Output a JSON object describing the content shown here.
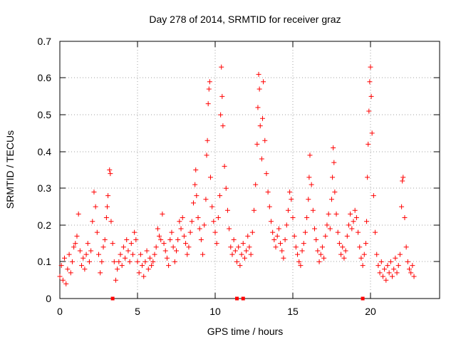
{
  "chart_data": {
    "type": "scatter",
    "title": "Day 278 of 2014, SRMTID for receiver graz",
    "xlabel": "GPS time / hours",
    "ylabel": "SRMTID / TECUs",
    "xlim": [
      0,
      24.5
    ],
    "ylim": [
      0,
      0.7
    ],
    "xticks": [
      "0",
      "5",
      "10",
      "15",
      "20"
    ],
    "yticks": [
      "0",
      "0.1",
      "0.2",
      "0.3",
      "0.4",
      "0.5",
      "0.6",
      "0.7"
    ],
    "grid": true,
    "marker": "+",
    "color": "#ff0000",
    "series": [
      {
        "name": "SRMTID",
        "points": [
          [
            0.0,
            0.06
          ],
          [
            0.1,
            0.09
          ],
          [
            0.2,
            0.05
          ],
          [
            0.3,
            0.11
          ],
          [
            0.4,
            0.04
          ],
          [
            0.5,
            0.08
          ],
          [
            0.6,
            0.12
          ],
          [
            0.7,
            0.07
          ],
          [
            0.8,
            0.1
          ],
          [
            0.9,
            0.14
          ],
          [
            1.0,
            0.15
          ],
          [
            1.1,
            0.17
          ],
          [
            1.2,
            0.23
          ],
          [
            1.3,
            0.13
          ],
          [
            1.4,
            0.09
          ],
          [
            1.5,
            0.11
          ],
          [
            1.6,
            0.08
          ],
          [
            1.7,
            0.12
          ],
          [
            1.8,
            0.15
          ],
          [
            1.9,
            0.1
          ],
          [
            2.0,
            0.13
          ],
          [
            2.1,
            0.21
          ],
          [
            2.2,
            0.29
          ],
          [
            2.3,
            0.25
          ],
          [
            2.4,
            0.18
          ],
          [
            2.5,
            0.12
          ],
          [
            2.6,
            0.07
          ],
          [
            2.7,
            0.1
          ],
          [
            2.8,
            0.14
          ],
          [
            2.9,
            0.16
          ],
          [
            3.0,
            0.22
          ],
          [
            3.05,
            0.25
          ],
          [
            3.1,
            0.28
          ],
          [
            3.2,
            0.35
          ],
          [
            3.25,
            0.34
          ],
          [
            3.3,
            0.21
          ],
          [
            3.4,
            0.15
          ],
          [
            3.5,
            0.1
          ],
          [
            3.6,
            0.05
          ],
          [
            3.7,
            0.08
          ],
          [
            3.8,
            0.1
          ],
          [
            3.9,
            0.12
          ],
          [
            4.0,
            0.09
          ],
          [
            4.1,
            0.14
          ],
          [
            4.2,
            0.11
          ],
          [
            4.3,
            0.16
          ],
          [
            4.4,
            0.13
          ],
          [
            4.5,
            0.1
          ],
          [
            4.6,
            0.15
          ],
          [
            4.7,
            0.12
          ],
          [
            4.8,
            0.18
          ],
          [
            4.9,
            0.16
          ],
          [
            5.0,
            0.1
          ],
          [
            5.1,
            0.07
          ],
          [
            5.2,
            0.12
          ],
          [
            5.3,
            0.09
          ],
          [
            5.4,
            0.06
          ],
          [
            5.5,
            0.1
          ],
          [
            5.6,
            0.13
          ],
          [
            5.7,
            0.08
          ],
          [
            5.8,
            0.11
          ],
          [
            5.9,
            0.09
          ],
          [
            6.0,
            0.1
          ],
          [
            6.1,
            0.12
          ],
          [
            6.2,
            0.14
          ],
          [
            6.3,
            0.19
          ],
          [
            6.4,
            0.17
          ],
          [
            6.5,
            0.16
          ],
          [
            6.6,
            0.23
          ],
          [
            6.7,
            0.15
          ],
          [
            6.8,
            0.13
          ],
          [
            6.9,
            0.11
          ],
          [
            7.0,
            0.09
          ],
          [
            7.1,
            0.16
          ],
          [
            7.2,
            0.18
          ],
          [
            7.3,
            0.14
          ],
          [
            7.4,
            0.1
          ],
          [
            7.5,
            0.13
          ],
          [
            7.6,
            0.16
          ],
          [
            7.7,
            0.21
          ],
          [
            7.8,
            0.19
          ],
          [
            7.9,
            0.22
          ],
          [
            8.0,
            0.17
          ],
          [
            8.1,
            0.15
          ],
          [
            8.2,
            0.12
          ],
          [
            8.3,
            0.14
          ],
          [
            8.4,
            0.18
          ],
          [
            8.5,
            0.21
          ],
          [
            8.6,
            0.26
          ],
          [
            8.7,
            0.31
          ],
          [
            8.75,
            0.35
          ],
          [
            8.8,
            0.28
          ],
          [
            8.9,
            0.22
          ],
          [
            9.0,
            0.19
          ],
          [
            9.1,
            0.16
          ],
          [
            9.2,
            0.12
          ],
          [
            9.3,
            0.2
          ],
          [
            9.4,
            0.27
          ],
          [
            9.45,
            0.39
          ],
          [
            9.5,
            0.43
          ],
          [
            9.55,
            0.53
          ],
          [
            9.6,
            0.57
          ],
          [
            9.65,
            0.59
          ],
          [
            9.7,
            0.33
          ],
          [
            9.8,
            0.25
          ],
          [
            9.9,
            0.21
          ],
          [
            10.0,
            0.18
          ],
          [
            10.1,
            0.15
          ],
          [
            10.2,
            0.22
          ],
          [
            10.3,
            0.28
          ],
          [
            10.35,
            0.5
          ],
          [
            10.4,
            0.63
          ],
          [
            10.45,
            0.55
          ],
          [
            10.5,
            0.47
          ],
          [
            10.6,
            0.36
          ],
          [
            10.7,
            0.3
          ],
          [
            10.8,
            0.24
          ],
          [
            10.9,
            0.19
          ],
          [
            11.0,
            0.14
          ],
          [
            11.1,
            0.12
          ],
          [
            11.2,
            0.16
          ],
          [
            11.3,
            0.13
          ],
          [
            11.4,
            0.1
          ],
          [
            11.5,
            0.14
          ],
          [
            11.6,
            0.09
          ],
          [
            11.7,
            0.12
          ],
          [
            11.8,
            0.15
          ],
          [
            11.9,
            0.11
          ],
          [
            12.0,
            0.13
          ],
          [
            12.1,
            0.17
          ],
          [
            12.2,
            0.14
          ],
          [
            12.3,
            0.12
          ],
          [
            12.4,
            0.18
          ],
          [
            12.5,
            0.24
          ],
          [
            12.6,
            0.31
          ],
          [
            12.7,
            0.42
          ],
          [
            12.75,
            0.52
          ],
          [
            12.8,
            0.61
          ],
          [
            12.85,
            0.57
          ],
          [
            12.9,
            0.47
          ],
          [
            13.0,
            0.38
          ],
          [
            13.05,
            0.49
          ],
          [
            13.1,
            0.59
          ],
          [
            13.2,
            0.43
          ],
          [
            13.3,
            0.34
          ],
          [
            13.4,
            0.29
          ],
          [
            13.5,
            0.25
          ],
          [
            13.6,
            0.21
          ],
          [
            13.7,
            0.18
          ],
          [
            13.8,
            0.16
          ],
          [
            13.9,
            0.14
          ],
          [
            14.0,
            0.17
          ],
          [
            14.1,
            0.19
          ],
          [
            14.2,
            0.15
          ],
          [
            14.3,
            0.13
          ],
          [
            14.4,
            0.11
          ],
          [
            14.5,
            0.16
          ],
          [
            14.6,
            0.2
          ],
          [
            14.7,
            0.24
          ],
          [
            14.8,
            0.29
          ],
          [
            14.9,
            0.27
          ],
          [
            15.0,
            0.22
          ],
          [
            15.1,
            0.17
          ],
          [
            15.2,
            0.14
          ],
          [
            15.3,
            0.12
          ],
          [
            15.4,
            0.1
          ],
          [
            15.5,
            0.09
          ],
          [
            15.6,
            0.13
          ],
          [
            15.7,
            0.15
          ],
          [
            15.8,
            0.18
          ],
          [
            15.9,
            0.22
          ],
          [
            16.0,
            0.27
          ],
          [
            16.05,
            0.33
          ],
          [
            16.1,
            0.39
          ],
          [
            16.2,
            0.31
          ],
          [
            16.3,
            0.24
          ],
          [
            16.4,
            0.19
          ],
          [
            16.5,
            0.16
          ],
          [
            16.6,
            0.13
          ],
          [
            16.7,
            0.1
          ],
          [
            16.8,
            0.12
          ],
          [
            16.9,
            0.14
          ],
          [
            17.0,
            0.11
          ],
          [
            17.1,
            0.17
          ],
          [
            17.2,
            0.2
          ],
          [
            17.3,
            0.23
          ],
          [
            17.4,
            0.19
          ],
          [
            17.5,
            0.27
          ],
          [
            17.55,
            0.33
          ],
          [
            17.6,
            0.41
          ],
          [
            17.65,
            0.37
          ],
          [
            17.7,
            0.29
          ],
          [
            17.8,
            0.23
          ],
          [
            17.9,
            0.18
          ],
          [
            18.0,
            0.15
          ],
          [
            18.1,
            0.12
          ],
          [
            18.2,
            0.14
          ],
          [
            18.3,
            0.11
          ],
          [
            18.4,
            0.13
          ],
          [
            18.5,
            0.17
          ],
          [
            18.6,
            0.2
          ],
          [
            18.7,
            0.23
          ],
          [
            18.8,
            0.19
          ],
          [
            18.9,
            0.21
          ],
          [
            19.0,
            0.24
          ],
          [
            19.1,
            0.22
          ],
          [
            19.2,
            0.18
          ],
          [
            19.3,
            0.14
          ],
          [
            19.4,
            0.11
          ],
          [
            19.5,
            0.09
          ],
          [
            19.6,
            0.12
          ],
          [
            19.7,
            0.15
          ],
          [
            19.75,
            0.21
          ],
          [
            19.8,
            0.33
          ],
          [
            19.85,
            0.42
          ],
          [
            19.9,
            0.51
          ],
          [
            19.95,
            0.59
          ],
          [
            20.0,
            0.63
          ],
          [
            20.05,
            0.55
          ],
          [
            20.1,
            0.45
          ],
          [
            20.2,
            0.28
          ],
          [
            20.3,
            0.18
          ],
          [
            20.4,
            0.12
          ],
          [
            20.5,
            0.09
          ],
          [
            20.6,
            0.07
          ],
          [
            20.7,
            0.1
          ],
          [
            20.8,
            0.06
          ],
          [
            20.9,
            0.08
          ],
          [
            21.0,
            0.05
          ],
          [
            21.1,
            0.09
          ],
          [
            21.2,
            0.07
          ],
          [
            21.3,
            0.1
          ],
          [
            21.4,
            0.06
          ],
          [
            21.5,
            0.08
          ],
          [
            21.6,
            0.11
          ],
          [
            21.7,
            0.07
          ],
          [
            21.8,
            0.09
          ],
          [
            21.9,
            0.12
          ],
          [
            22.0,
            0.25
          ],
          [
            22.05,
            0.32
          ],
          [
            22.1,
            0.33
          ],
          [
            22.2,
            0.22
          ],
          [
            22.3,
            0.14
          ],
          [
            22.4,
            0.1
          ],
          [
            22.5,
            0.08
          ],
          [
            22.6,
            0.07
          ],
          [
            22.7,
            0.09
          ],
          [
            22.8,
            0.06
          ]
        ]
      }
    ],
    "baseline_markers": [
      3.4,
      11.4,
      11.8,
      19.5
    ]
  }
}
